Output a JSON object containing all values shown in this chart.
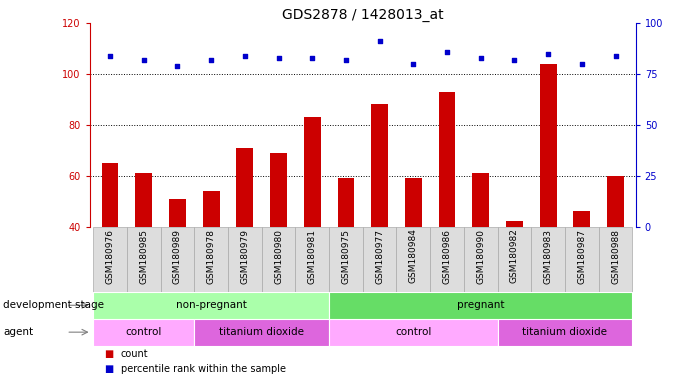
{
  "title": "GDS2878 / 1428013_at",
  "samples": [
    "GSM180976",
    "GSM180985",
    "GSM180989",
    "GSM180978",
    "GSM180979",
    "GSM180980",
    "GSM180981",
    "GSM180975",
    "GSM180977",
    "GSM180984",
    "GSM180986",
    "GSM180990",
    "GSM180982",
    "GSM180983",
    "GSM180987",
    "GSM180988"
  ],
  "counts": [
    65,
    61,
    51,
    54,
    71,
    69,
    83,
    59,
    88,
    59,
    93,
    61,
    42,
    104,
    46,
    60
  ],
  "percentile_ranks": [
    84,
    82,
    79,
    82,
    84,
    83,
    83,
    82,
    91,
    80,
    86,
    83,
    82,
    85,
    80,
    84
  ],
  "bar_color": "#cc0000",
  "dot_color": "#0000cc",
  "ylim_left": [
    40,
    120
  ],
  "ylim_right": [
    0,
    100
  ],
  "yticks_left": [
    40,
    60,
    80,
    100,
    120
  ],
  "yticks_right": [
    0,
    25,
    50,
    75,
    100
  ],
  "background_color": "#ffffff",
  "plot_bg_color": "#ffffff",
  "grid_color": "#000000",
  "grid_style": "dotted",
  "grid_levels": [
    60,
    80,
    100
  ],
  "groups": {
    "development_stage": [
      {
        "label": "non-pregnant",
        "start": 0,
        "end": 7,
        "color": "#aaffaa"
      },
      {
        "label": "pregnant",
        "start": 7,
        "end": 16,
        "color": "#66dd66"
      }
    ],
    "agent": [
      {
        "label": "control",
        "start": 0,
        "end": 3,
        "color": "#ffaaff"
      },
      {
        "label": "titanium dioxide",
        "start": 3,
        "end": 7,
        "color": "#dd66dd"
      },
      {
        "label": "control",
        "start": 7,
        "end": 12,
        "color": "#ffaaff"
      },
      {
        "label": "titanium dioxide",
        "start": 12,
        "end": 16,
        "color": "#dd66dd"
      }
    ]
  },
  "legend_items": [
    {
      "label": "count",
      "color": "#cc0000"
    },
    {
      "label": "percentile rank within the sample",
      "color": "#0000cc"
    }
  ],
  "left_axis_color": "#cc0000",
  "right_axis_color": "#0000cc",
  "title_fontsize": 10,
  "tick_fontsize": 7,
  "bar_width": 0.5,
  "sample_cell_color": "#dddddd",
  "sample_cell_edgecolor": "#aaaaaa"
}
